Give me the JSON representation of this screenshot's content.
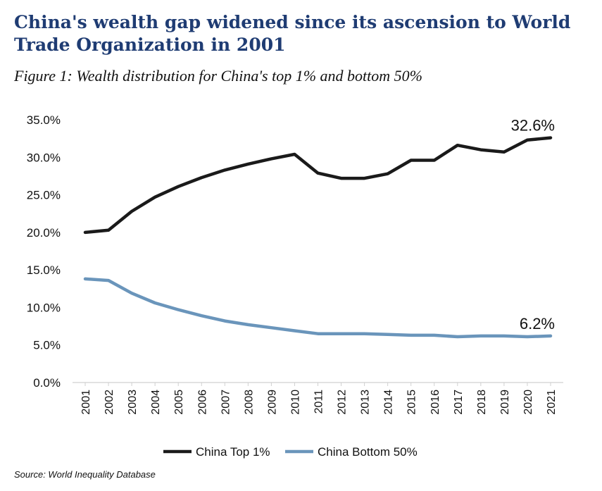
{
  "header": {
    "title": "China's wealth gap widened since its ascension to World Trade Organization in 2001",
    "subtitle": "Figure 1:  Wealth distribution for China's top 1% and bottom 50%"
  },
  "source": "Source: World Inequality Database",
  "chart_data": {
    "type": "line",
    "x": [
      "2001",
      "2002",
      "2003",
      "2004",
      "2005",
      "2006",
      "2007",
      "2008",
      "2009",
      "2010",
      "2011",
      "2012",
      "2013",
      "2014",
      "2015",
      "2016",
      "2017",
      "2018",
      "2019",
      "2020",
      "2021"
    ],
    "yticks": [
      "0.0%",
      "5.0%",
      "10.0%",
      "15.0%",
      "20.0%",
      "25.0%",
      "30.0%",
      "35.0%"
    ],
    "ylim": [
      0,
      35
    ],
    "grid": false,
    "legend": "bottom",
    "series": [
      {
        "name": "China Top 1%",
        "color": "#1a1a1a",
        "values": [
          20.0,
          20.3,
          22.8,
          24.7,
          26.1,
          27.3,
          28.3,
          29.1,
          29.8,
          30.4,
          27.9,
          27.2,
          27.2,
          27.8,
          29.6,
          29.6,
          31.6,
          31.0,
          30.7,
          32.3,
          32.6
        ],
        "end_label": "32.6%"
      },
      {
        "name": "China Bottom 50%",
        "color": "#6a95bb",
        "values": [
          13.8,
          13.6,
          11.9,
          10.6,
          9.7,
          8.9,
          8.2,
          7.7,
          7.3,
          6.9,
          6.5,
          6.5,
          6.5,
          6.4,
          6.3,
          6.3,
          6.1,
          6.2,
          6.2,
          6.1,
          6.2
        ],
        "end_label": "6.2%"
      }
    ]
  }
}
